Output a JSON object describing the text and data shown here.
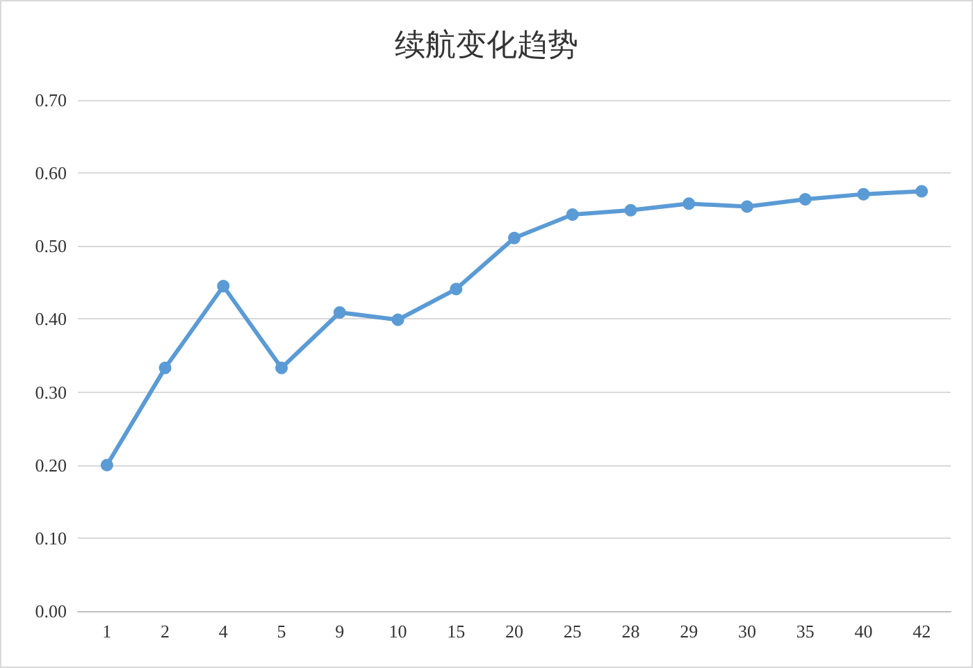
{
  "chart_data": {
    "type": "line",
    "title": "续航变化趋势",
    "categories": [
      "1",
      "2",
      "4",
      "5",
      "9",
      "10",
      "15",
      "20",
      "25",
      "28",
      "29",
      "30",
      "35",
      "40",
      "42"
    ],
    "series": [
      {
        "color": "#5b9bd5",
        "values": [
          0.2,
          0.333,
          0.445,
          0.333,
          0.409,
          0.399,
          0.441,
          0.511,
          0.543,
          0.549,
          0.558,
          0.554,
          0.564,
          0.571,
          0.575
        ]
      }
    ],
    "ylim": [
      0,
      0.7
    ],
    "yticks": [
      {
        "value": 0,
        "label": "0.00"
      },
      {
        "value": 0.1,
        "label": "0.10"
      },
      {
        "value": 0.2,
        "label": "0.20"
      },
      {
        "value": 0.3,
        "label": "0.30"
      },
      {
        "value": 0.4,
        "label": "0.40"
      },
      {
        "value": 0.5,
        "label": "0.50"
      },
      {
        "value": 0.6,
        "label": "0.60"
      },
      {
        "value": 0.7,
        "label": "0.70"
      }
    ],
    "grid": "y",
    "marker": "circle",
    "line_style": "solid"
  }
}
